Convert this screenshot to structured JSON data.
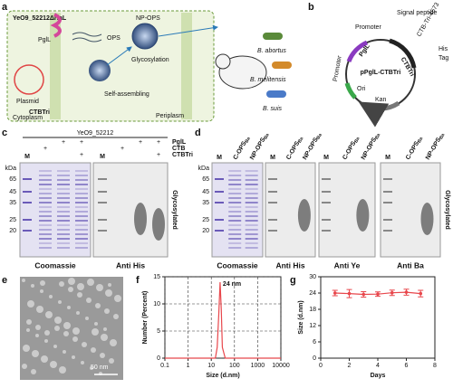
{
  "panels": {
    "a": {
      "letter": "a",
      "strain": "YeO9_52212ΔrfaL",
      "pglL": "PglL",
      "ops": "OPS",
      "np_ops": "NP-OPS",
      "glycosylation": "Glycosylation",
      "plasmid": "Plasmid",
      "ctbtri": "CTBTri",
      "self_assembling": "Self-assembling",
      "cytoplasm": "Cytoplasm",
      "periplasm": "Periplasm",
      "species": [
        "B. abortus",
        "B. melitensis",
        "B. suis"
      ]
    },
    "b": {
      "letter": "b",
      "promoter_top": "Promoter",
      "signal_peptide": "Signal peptide",
      "construct": "CTB-Tri-4573",
      "his": "His",
      "tag": "Tag",
      "plasmid_name": "pPglL-CTBTri",
      "pglL": "PglL",
      "ctbtri": "CTBTri",
      "promoter_left": "Promoter",
      "ori": "Ori",
      "kan": "Kan"
    },
    "c": {
      "letter": "c",
      "strain": "YeO9_52212",
      "marker_unit": "kDa",
      "markers": [
        65,
        45,
        35,
        25,
        20
      ],
      "lane_m": "M",
      "rows": [
        {
          "label": "PglL",
          "cells": [
            null,
            "+",
            "+",
            null,
            "+",
            "+"
          ]
        },
        {
          "label": "CTB",
          "cells": [
            "+",
            null,
            null,
            "+",
            null,
            null
          ]
        },
        {
          "label": "CTBTri",
          "cells": [
            null,
            null,
            "+",
            null,
            null,
            "+"
          ]
        }
      ],
      "captions": [
        "Coomassie",
        "Anti His"
      ],
      "side_label": "Glycosylated"
    },
    "d": {
      "letter": "d",
      "marker_unit": "kDa",
      "markers": [
        65,
        45,
        35,
        25,
        20
      ],
      "lane_m": "M",
      "lanes": [
        {
          "main": "C-OPS",
          "sub": "Ba"
        },
        {
          "main": "NP-OPS",
          "sub": "Ba"
        }
      ],
      "captions": [
        "Coomassie",
        "Anti His",
        "Anti Ye",
        "Anti Ba"
      ],
      "side_label": "Glycosylated"
    },
    "e": {
      "letter": "e",
      "scale_bar": "50 nm"
    }
  },
  "chart_data": [
    {
      "type": "line",
      "panel_label": "f",
      "xlabel": "Size (d.nm)",
      "ylabel": "Number (Percent)",
      "annotation": "24 nm",
      "x": [
        0.1,
        15,
        18,
        21,
        24,
        27,
        30,
        40,
        10000
      ],
      "series": [
        {
          "color": "#e8474c",
          "values": [
            0,
            0,
            2,
            8,
            14,
            9,
            2,
            0,
            0
          ]
        }
      ],
      "xlim": [
        0.1,
        10000
      ],
      "xticks": [
        0.1,
        1,
        10,
        100,
        1000,
        10000
      ],
      "log_x": true,
      "ylim": [
        0,
        15
      ],
      "yticks": [
        0,
        5,
        10,
        15
      ],
      "grid": true
    },
    {
      "type": "line",
      "panel_label": "g",
      "xlabel": "Days",
      "ylabel": "Size (d.nm)",
      "x": [
        1,
        2,
        3,
        4,
        5,
        6,
        7
      ],
      "series": [
        {
          "color": "#e8474c",
          "values": [
            24,
            23.8,
            23.5,
            23.6,
            24.1,
            24.3,
            23.8
          ],
          "errors": [
            1,
            1.5,
            1,
            0.8,
            1,
            1.1,
            1.2
          ]
        }
      ],
      "xlim": [
        0,
        8
      ],
      "xticks": [
        0,
        2,
        4,
        6,
        8
      ],
      "log_x": false,
      "ylim": [
        0,
        30
      ],
      "yticks": [
        0,
        6,
        12,
        18,
        24,
        30
      ],
      "grid": false
    }
  ]
}
